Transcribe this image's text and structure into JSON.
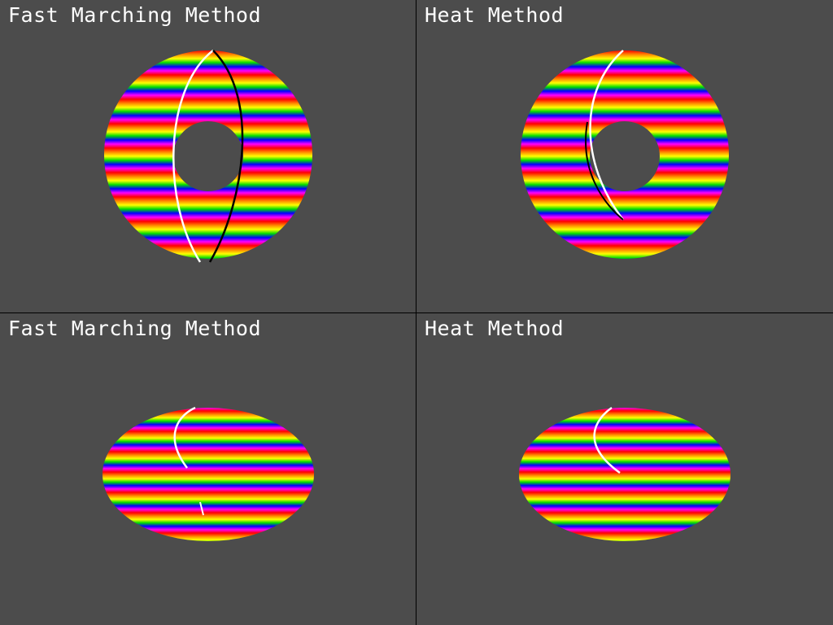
{
  "viewports": [
    {
      "label": "Fast Marching Method",
      "view": "top"
    },
    {
      "label": "Heat Method",
      "view": "top"
    },
    {
      "label": "Fast Marching Method",
      "view": "perspective"
    },
    {
      "label": "Heat Method",
      "view": "perspective"
    }
  ],
  "colors": {
    "background": "#4c4c4c",
    "divider": "#000000",
    "stripes": [
      "#ff0000",
      "#ff8800",
      "#ffff00",
      "#00dd00",
      "#0000ff",
      "#ff00ff"
    ]
  }
}
